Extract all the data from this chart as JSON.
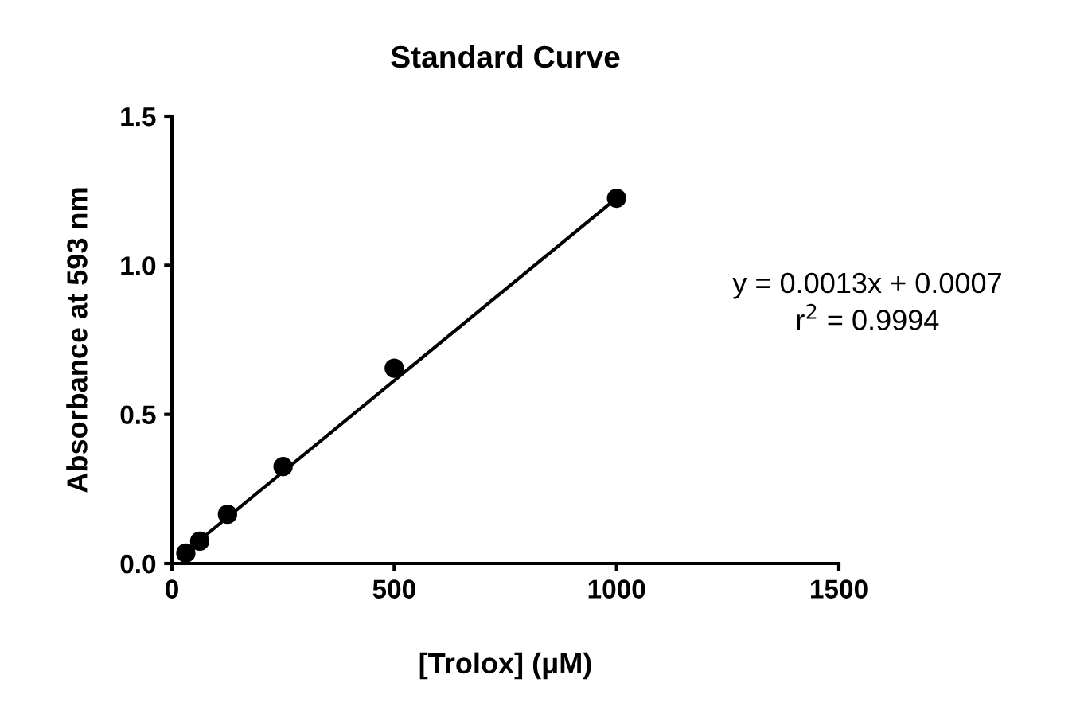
{
  "chart_data": {
    "type": "scatter",
    "title": "Standard Curve",
    "xlabel": "[Trolox] (μM)",
    "ylabel": "Absorbance at 593 nm",
    "x": [
      31.25,
      62.5,
      125,
      250,
      500,
      1000
    ],
    "series": [
      {
        "color": "#000000",
        "marker": "circle",
        "values": [
          0.035,
          0.075,
          0.165,
          0.325,
          0.655,
          1.225
        ]
      },
      {
        "type": "line",
        "color": "#000000",
        "x": [
          31.25,
          1000
        ],
        "values": [
          0.04,
          1.225
        ]
      }
    ],
    "annotations": [
      "y = 0.0013x + 0.0007\nr$^{2}$ = 0.9994"
    ],
    "xlim": [
      0,
      1500
    ],
    "xticks": [
      0,
      500,
      1000,
      1500
    ],
    "ylim": [
      0,
      1.5
    ],
    "yticks": [
      {
        "value": 0,
        "label": "0.0"
      },
      0.5,
      {
        "value": 1,
        "label": "1.0"
      },
      1.5
    ],
    "grid": false,
    "legend": false
  }
}
